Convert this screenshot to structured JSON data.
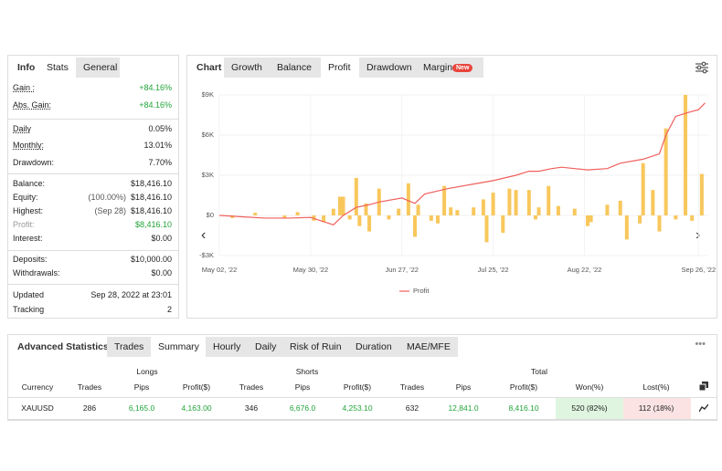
{
  "info_tabs": [
    "Info",
    "Stats",
    "General"
  ],
  "stats": [
    [
      {
        "label": "Gain :",
        "value": "+84.16%",
        "color": "#22a33a"
      },
      {
        "label": "Abs. Gain:",
        "value": "+84.16%",
        "color": "#22a33a"
      }
    ],
    [
      {
        "label": "Daily",
        "value": "0.05%"
      },
      {
        "label": "Monthly:",
        "value": "13.01%"
      },
      {
        "label": "Drawdown:",
        "value": "7.70%"
      }
    ],
    [
      {
        "label": "Balance:",
        "value": "$18,416.10"
      },
      {
        "label": "Equity:",
        "note": "(100.00%)",
        "value": "$18,416.10"
      },
      {
        "label": "Highest:",
        "note": "(Sep 28)",
        "value": "$18,416.10"
      },
      {
        "label": "Profit:",
        "value": "$8,416.10",
        "color": "#22a33a"
      },
      {
        "label": "Interest:",
        "value": "$0.00"
      }
    ],
    [
      {
        "label": "Deposits:",
        "value": "$10,000.00"
      },
      {
        "label": "Withdrawals:",
        "value": "$0.00"
      }
    ],
    [
      {
        "label": "Updated",
        "value": "Sep 28, 2022 at 23:01"
      },
      {
        "label": "Tracking",
        "value": "2"
      }
    ]
  ],
  "chart_tabs": [
    "Chart",
    "Growth",
    "Balance",
    "Profit",
    "Drawdown",
    "Margin"
  ],
  "badge": "New",
  "chart_data": {
    "type": "combo",
    "grid": true,
    "xlim": [
      "2022-05-02",
      "2022-09-29"
    ],
    "xticks": [
      {
        "value": "2022-05-02",
        "label": "May 02, '22"
      },
      {
        "value": "2022-05-30",
        "label": "May 30, '22"
      },
      {
        "value": "2022-06-27",
        "label": "Jun 27, '22"
      },
      {
        "value": "2022-07-25",
        "label": "Jul 25, '22"
      },
      {
        "value": "2022-08-22",
        "label": "Aug 22, '22"
      },
      {
        "value": "2022-09-26",
        "label": "Sep 26, '22"
      }
    ],
    "ylim": [
      -3000,
      9000
    ],
    "yticks": [
      {
        "value": 9000,
        "label": "$9K"
      },
      {
        "value": 6000,
        "label": "$6K"
      },
      {
        "value": 3000,
        "label": "$3K"
      },
      {
        "value": 0,
        "label": "$0"
      },
      {
        "value": -3000,
        "label": "-$3K"
      }
    ],
    "series": [
      {
        "type": "bar",
        "color": "#f8c75c",
        "x": [
          "2022-05-06",
          "2022-05-13",
          "2022-05-22",
          "2022-05-26",
          "2022-05-31",
          "2022-06-03",
          "2022-06-06",
          "2022-06-08",
          "2022-06-09",
          "2022-06-11",
          "2022-06-13",
          "2022-06-14",
          "2022-06-16",
          "2022-06-17",
          "2022-06-20",
          "2022-06-23",
          "2022-06-26",
          "2022-06-29",
          "2022-07-01",
          "2022-07-02",
          "2022-07-06",
          "2022-07-08",
          "2022-07-10",
          "2022-07-12",
          "2022-07-14",
          "2022-07-19",
          "2022-07-22",
          "2022-07-23",
          "2022-07-25",
          "2022-07-28",
          "2022-07-30",
          "2022-08-01",
          "2022-08-05",
          "2022-08-07",
          "2022-08-08",
          "2022-08-11",
          "2022-08-14",
          "2022-08-19",
          "2022-08-23",
          "2022-08-24",
          "2022-08-29",
          "2022-09-02",
          "2022-09-04",
          "2022-09-08",
          "2022-09-09",
          "2022-09-12",
          "2022-09-14",
          "2022-09-16",
          "2022-09-19",
          "2022-09-22",
          "2022-09-24",
          "2022-09-27"
        ],
        "values": [
          -200,
          200,
          -200,
          250,
          -400,
          -500,
          500,
          1400,
          1400,
          -300,
          2800,
          -800,
          900,
          -1200,
          2000,
          -300,
          500,
          2400,
          -1600,
          800,
          -400,
          -600,
          2200,
          600,
          400,
          600,
          1200,
          -2000,
          1700,
          -1300,
          2000,
          1900,
          1900,
          -300,
          600,
          2200,
          700,
          500,
          -800,
          -500,
          800,
          1100,
          -1800,
          -600,
          3900,
          1900,
          -1200,
          6500,
          -300,
          9000,
          -400,
          3100
        ]
      },
      {
        "type": "line",
        "name": "Profit",
        "color": "#ef5f5c",
        "x": [
          "2022-05-02",
          "2022-05-09",
          "2022-05-16",
          "2022-05-23",
          "2022-05-30",
          "2022-06-06",
          "2022-06-09",
          "2022-06-13",
          "2022-06-17",
          "2022-06-20",
          "2022-06-27",
          "2022-07-01",
          "2022-07-04",
          "2022-07-11",
          "2022-07-18",
          "2022-07-25",
          "2022-08-01",
          "2022-08-05",
          "2022-08-08",
          "2022-08-12",
          "2022-08-15",
          "2022-08-19",
          "2022-08-23",
          "2022-08-29",
          "2022-09-02",
          "2022-09-09",
          "2022-09-14",
          "2022-09-16",
          "2022-09-19",
          "2022-09-23",
          "2022-09-26",
          "2022-09-28"
        ],
        "values": [
          0,
          -100,
          -200,
          -200,
          -150,
          -700,
          0,
          600,
          800,
          1000,
          1300,
          900,
          1600,
          2000,
          2300,
          2600,
          3000,
          3300,
          3300,
          3500,
          3600,
          3500,
          3400,
          3500,
          3900,
          4200,
          4600,
          6000,
          7400,
          7700,
          7900,
          8400
        ]
      }
    ]
  },
  "bottom_tabs": [
    "Advanced Statistics",
    "Trades",
    "Summary",
    "Hourly",
    "Daily",
    "Risk of Ruin",
    "Duration",
    "MAE/MFE"
  ],
  "table": {
    "groups": [
      "Longs",
      "Shorts",
      "Total"
    ],
    "columns": [
      "Currency",
      "Trades",
      "Pips",
      "Profit($)",
      "Trades",
      "Pips",
      "Profit($)",
      "Trades",
      "Pips",
      "Profit($)",
      "Won(%)",
      "Lost(%)"
    ],
    "rows": [
      [
        "XAUUSD",
        "286",
        "6,165.0",
        "4,163.00",
        "346",
        "6,676.0",
        "4,253.10",
        "632",
        "12,841.0",
        "8,416.10",
        "520 (82%)",
        "112 (18%)"
      ]
    ]
  }
}
